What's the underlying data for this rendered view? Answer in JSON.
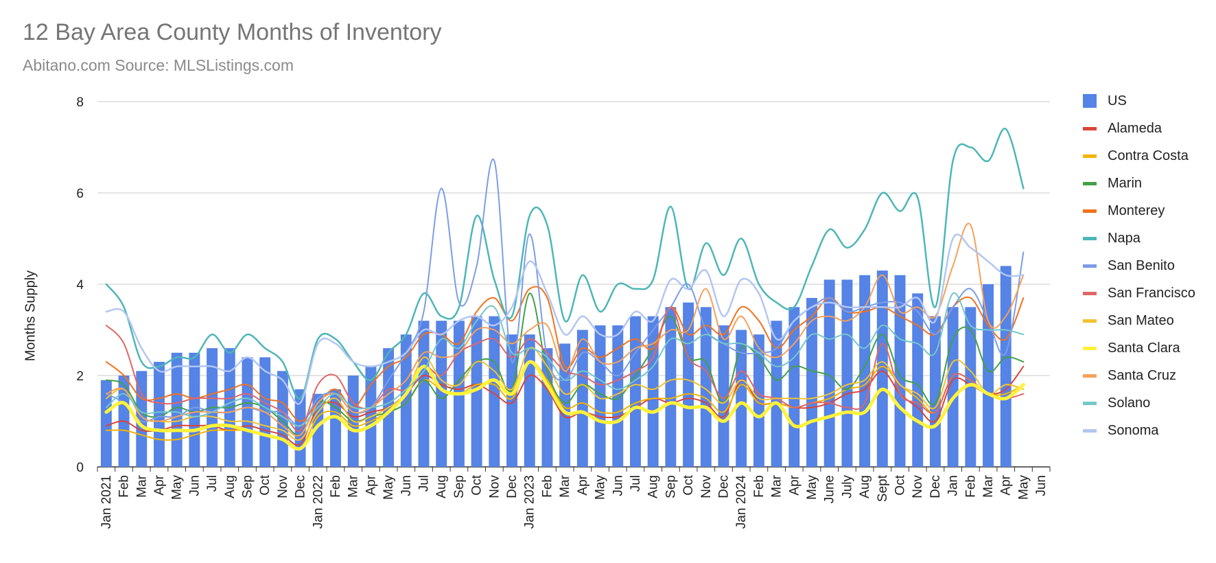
{
  "chart_data": {
    "type": "bar+line",
    "title": "12 Bay Area County Months of Inventory",
    "subtitle": "Abitano.com Source: MLSListings.com",
    "ylabel": "Months Supply",
    "xlabel": "",
    "ylim": [
      0,
      8
    ],
    "yticks": [
      "0",
      "2",
      "4",
      "6",
      "8"
    ],
    "categories": [
      "Jan 2021",
      "Feb",
      "Mar",
      "Apr",
      "May",
      "Jun",
      "Jul",
      "Aug",
      "Sep",
      "Oct",
      "Nov",
      "Dec",
      "Jan 2022",
      "Feb",
      "Mar",
      "Apr",
      "May",
      "Jun",
      "Jul",
      "Aug",
      "Sep",
      "Oct",
      "Nov",
      "Dec",
      "Jan 2023",
      "Feb",
      "Mar",
      "Apr",
      "May",
      "Jun",
      "Jul",
      "Aug",
      "Sep",
      "Oct",
      "Nov",
      "Dec",
      "Jan 2024",
      "Feb",
      "Mar",
      "Apr",
      "May",
      "June",
      "July",
      "Aug",
      "Sept",
      "Oct",
      "Nov",
      "Dec",
      "Jan",
      "Feb",
      "Mar",
      "Apr",
      "May",
      "Jun"
    ],
    "legend_position": "right",
    "series": [
      {
        "name": "US",
        "kind": "bar",
        "color": "#5583e6",
        "values": [
          1.9,
          2.0,
          2.1,
          2.3,
          2.5,
          2.5,
          2.6,
          2.6,
          2.4,
          2.4,
          2.1,
          1.7,
          1.6,
          1.7,
          2.0,
          2.2,
          2.6,
          2.9,
          3.2,
          3.2,
          3.2,
          3.3,
          3.3,
          2.9,
          2.9,
          2.6,
          2.7,
          3.0,
          3.1,
          3.1,
          3.3,
          3.3,
          3.5,
          3.6,
          3.5,
          3.1,
          3.0,
          2.9,
          3.2,
          3.5,
          3.7,
          4.1,
          4.1,
          4.2,
          4.3,
          4.2,
          3.8,
          3.3,
          3.5,
          3.5,
          4.0,
          4.4,
          null,
          null
        ]
      },
      {
        "name": "Alameda",
        "kind": "line",
        "color": "#db4437",
        "width": 2,
        "values": [
          0.9,
          1.0,
          0.8,
          0.8,
          0.9,
          0.9,
          0.9,
          0.8,
          0.9,
          0.8,
          0.7,
          0.5,
          1.3,
          1.4,
          1.1,
          1.2,
          1.3,
          1.6,
          2.0,
          1.8,
          1.7,
          1.8,
          1.6,
          1.4,
          2.0,
          1.7,
          1.1,
          1.2,
          1.1,
          1.1,
          1.3,
          1.5,
          1.4,
          1.5,
          1.4,
          1.1,
          1.9,
          1.4,
          1.4,
          1.3,
          1.3,
          1.4,
          1.6,
          1.7,
          2.1,
          1.6,
          1.3,
          1.0,
          1.9,
          1.8,
          1.6,
          1.7,
          2.2,
          null
        ]
      },
      {
        "name": "Contra Costa",
        "kind": "line",
        "color": "#f4b400",
        "width": 2,
        "values": [
          0.8,
          0.8,
          0.7,
          0.6,
          0.6,
          0.7,
          0.8,
          0.8,
          0.8,
          0.7,
          0.6,
          0.4,
          1.1,
          1.2,
          0.9,
          1.0,
          1.2,
          1.4,
          1.9,
          1.7,
          1.6,
          1.8,
          1.8,
          1.5,
          2.3,
          1.9,
          1.3,
          1.4,
          1.2,
          1.2,
          1.4,
          1.5,
          1.5,
          1.6,
          1.5,
          1.2,
          1.8,
          1.4,
          1.4,
          1.3,
          1.4,
          1.5,
          1.7,
          1.8,
          2.2,
          1.8,
          1.5,
          1.2,
          2.0,
          1.9,
          1.6,
          1.6,
          1.8,
          null
        ]
      },
      {
        "name": "Marin",
        "kind": "line",
        "color": "#43a047",
        "width": 2,
        "values": [
          1.9,
          1.8,
          1.2,
          1.1,
          1.3,
          1.2,
          1.3,
          1.3,
          1.4,
          1.3,
          1.0,
          0.7,
          1.4,
          1.3,
          1.0,
          1.1,
          1.2,
          1.4,
          1.9,
          1.5,
          1.9,
          2.3,
          2.3,
          1.7,
          3.8,
          2.1,
          1.4,
          1.8,
          1.6,
          1.5,
          2.0,
          2.6,
          3.3,
          2.4,
          2.3,
          1.4,
          2.6,
          2.4,
          1.9,
          2.2,
          2.1,
          2.0,
          1.7,
          2.2,
          2.9,
          2.0,
          1.8,
          1.4,
          2.8,
          3.0,
          2.1,
          2.4,
          2.3,
          null
        ]
      },
      {
        "name": "Monterey",
        "kind": "line",
        "color": "#f2711c",
        "width": 2,
        "values": [
          2.3,
          2.0,
          1.5,
          1.5,
          1.6,
          1.5,
          1.6,
          1.7,
          1.8,
          1.5,
          1.4,
          1.0,
          1.4,
          1.7,
          1.3,
          1.8,
          2.2,
          2.4,
          2.9,
          2.9,
          2.7,
          3.4,
          3.7,
          3.2,
          3.9,
          3.7,
          2.2,
          2.6,
          2.4,
          2.6,
          2.8,
          2.6,
          3.5,
          2.9,
          3.1,
          2.9,
          3.5,
          3.2,
          2.6,
          3.0,
          3.3,
          3.7,
          3.4,
          3.4,
          3.5,
          3.3,
          3.1,
          2.9,
          3.5,
          3.7,
          3.1,
          2.8,
          3.7,
          null
        ]
      },
      {
        "name": "Napa",
        "kind": "line",
        "color": "#4db6b6",
        "width": 2.5,
        "values": [
          4.0,
          3.5,
          2.3,
          2.2,
          2.4,
          2.4,
          2.9,
          2.5,
          2.9,
          2.6,
          2.3,
          1.5,
          2.8,
          2.8,
          2.3,
          1.9,
          2.5,
          2.9,
          3.8,
          3.3,
          3.5,
          5.5,
          4.1,
          3.3,
          5.5,
          5.3,
          3.2,
          4.2,
          3.4,
          4.0,
          3.9,
          4.1,
          5.7,
          3.9,
          4.9,
          4.2,
          5.0,
          4.0,
          3.6,
          3.5,
          4.4,
          5.2,
          4.8,
          5.2,
          6.0,
          5.6,
          5.9,
          3.5,
          6.7,
          7.0,
          6.7,
          7.4,
          6.1,
          null
        ]
      },
      {
        "name": "San Benito",
        "kind": "line",
        "color": "#7b9de8",
        "width": 2,
        "values": [
          1.6,
          1.4,
          1.0,
          1.1,
          1.1,
          1.3,
          1.2,
          1.2,
          1.3,
          1.2,
          1.2,
          0.9,
          1.5,
          1.6,
          1.2,
          1.3,
          1.9,
          2.5,
          3.4,
          6.1,
          3.6,
          4.4,
          6.7,
          2.3,
          5.1,
          2.4,
          1.9,
          2.5,
          2.3,
          2.0,
          2.5,
          3.0,
          3.5,
          4.0,
          3.0,
          2.7,
          2.5,
          2.5,
          2.6,
          3.2,
          3.5,
          3.7,
          3.4,
          3.5,
          3.6,
          3.6,
          3.4,
          2.9,
          3.5,
          3.9,
          3.2,
          2.5,
          4.7,
          null
        ]
      },
      {
        "name": "San Francisco",
        "kind": "line",
        "color": "#e06666",
        "width": 2,
        "values": [
          3.1,
          2.7,
          1.6,
          1.4,
          1.4,
          1.5,
          1.5,
          1.5,
          1.6,
          1.4,
          1.2,
          0.8,
          1.8,
          2.0,
          1.4,
          1.3,
          1.7,
          1.7,
          2.2,
          2.0,
          2.5,
          2.7,
          2.8,
          2.4,
          2.8,
          2.5,
          2.1,
          2.0,
          1.8,
          1.9,
          2.1,
          2.4,
          3.5,
          2.4,
          2.1,
          1.5,
          2.1,
          1.6,
          1.5,
          1.3,
          1.4,
          1.4,
          1.3,
          1.4,
          2.7,
          1.6,
          1.4,
          1.2,
          2.0,
          1.9,
          1.6,
          1.5,
          1.6,
          null
        ]
      },
      {
        "name": "San Mateo",
        "kind": "line",
        "color": "#f1c232",
        "width": 2,
        "values": [
          1.5,
          1.7,
          1.1,
          1.0,
          1.0,
          1.1,
          1.1,
          1.0,
          1.0,
          0.9,
          0.8,
          0.6,
          1.2,
          1.5,
          1.0,
          1.1,
          1.3,
          1.6,
          2.4,
          1.9,
          1.8,
          2.3,
          2.1,
          1.7,
          2.6,
          2.2,
          1.6,
          1.8,
          1.5,
          1.6,
          1.8,
          1.7,
          1.9,
          1.9,
          1.7,
          1.4,
          1.9,
          1.5,
          1.5,
          1.5,
          1.5,
          1.6,
          1.8,
          1.9,
          2.3,
          1.8,
          1.6,
          1.3,
          2.3,
          2.1,
          1.6,
          1.8,
          1.7,
          null
        ]
      },
      {
        "name": "Santa Clara",
        "kind": "line",
        "color": "#fff23a",
        "width": 5,
        "values": [
          1.2,
          1.4,
          0.9,
          0.8,
          0.8,
          0.8,
          0.9,
          0.9,
          0.8,
          0.7,
          0.6,
          0.4,
          0.9,
          1.1,
          0.8,
          0.9,
          1.2,
          1.6,
          2.2,
          1.7,
          1.6,
          1.7,
          1.9,
          1.6,
          2.3,
          1.8,
          1.2,
          1.2,
          1.0,
          1.0,
          1.3,
          1.2,
          1.4,
          1.3,
          1.3,
          1.0,
          1.4,
          1.1,
          1.4,
          0.9,
          1.0,
          1.1,
          1.2,
          1.2,
          1.7,
          1.3,
          1.0,
          0.9,
          1.5,
          1.8,
          1.6,
          1.5,
          1.8,
          null
        ]
      },
      {
        "name": "Santa Cruz",
        "kind": "line",
        "color": "#f6a05a",
        "width": 2,
        "values": [
          1.6,
          1.7,
          1.1,
          1.0,
          1.1,
          1.2,
          1.2,
          1.2,
          1.3,
          1.2,
          0.9,
          0.7,
          1.4,
          1.6,
          1.2,
          1.3,
          1.6,
          1.9,
          2.5,
          2.4,
          2.5,
          3.0,
          3.0,
          2.7,
          3.0,
          3.1,
          2.1,
          2.8,
          2.3,
          2.3,
          2.6,
          2.7,
          3.0,
          3.0,
          3.9,
          2.8,
          3.3,
          2.6,
          2.4,
          2.7,
          3.2,
          3.3,
          3.2,
          3.5,
          4.2,
          3.4,
          3.5,
          3.3,
          4.4,
          5.3,
          3.2,
          3.3,
          4.2,
          null
        ]
      },
      {
        "name": "Solano",
        "kind": "line",
        "color": "#76c7c7",
        "width": 2,
        "values": [
          1.3,
          1.6,
          1.2,
          1.2,
          1.2,
          1.1,
          1.2,
          1.4,
          1.5,
          1.3,
          1.1,
          0.9,
          1.3,
          1.6,
          1.3,
          1.3,
          1.4,
          1.7,
          2.1,
          2.8,
          2.6,
          3.2,
          3.5,
          2.5,
          2.6,
          2.4,
          1.9,
          2.1,
          1.9,
          1.7,
          1.9,
          2.2,
          2.8,
          2.7,
          2.9,
          2.7,
          2.7,
          2.5,
          2.2,
          2.4,
          2.9,
          2.8,
          2.9,
          2.6,
          3.1,
          2.8,
          2.7,
          2.5,
          3.8,
          3.1,
          3.0,
          3.0,
          2.9,
          null
        ]
      },
      {
        "name": "Sonoma",
        "kind": "line",
        "color": "#b3c6f2",
        "width": 2.5,
        "values": [
          3.4,
          3.4,
          2.6,
          2.1,
          2.2,
          2.2,
          2.2,
          2.1,
          2.4,
          2.1,
          1.9,
          1.4,
          2.7,
          2.7,
          2.3,
          2.2,
          2.3,
          2.5,
          3.0,
          2.9,
          3.2,
          3.3,
          3.1,
          3.5,
          4.5,
          3.8,
          2.9,
          3.3,
          2.9,
          2.9,
          3.4,
          3.2,
          4.1,
          3.9,
          4.3,
          3.3,
          4.1,
          3.8,
          2.8,
          3.2,
          3.5,
          3.6,
          3.5,
          3.5,
          3.5,
          3.5,
          3.7,
          3.2,
          5.0,
          4.8,
          4.5,
          4.2,
          4.2,
          null
        ]
      }
    ]
  }
}
